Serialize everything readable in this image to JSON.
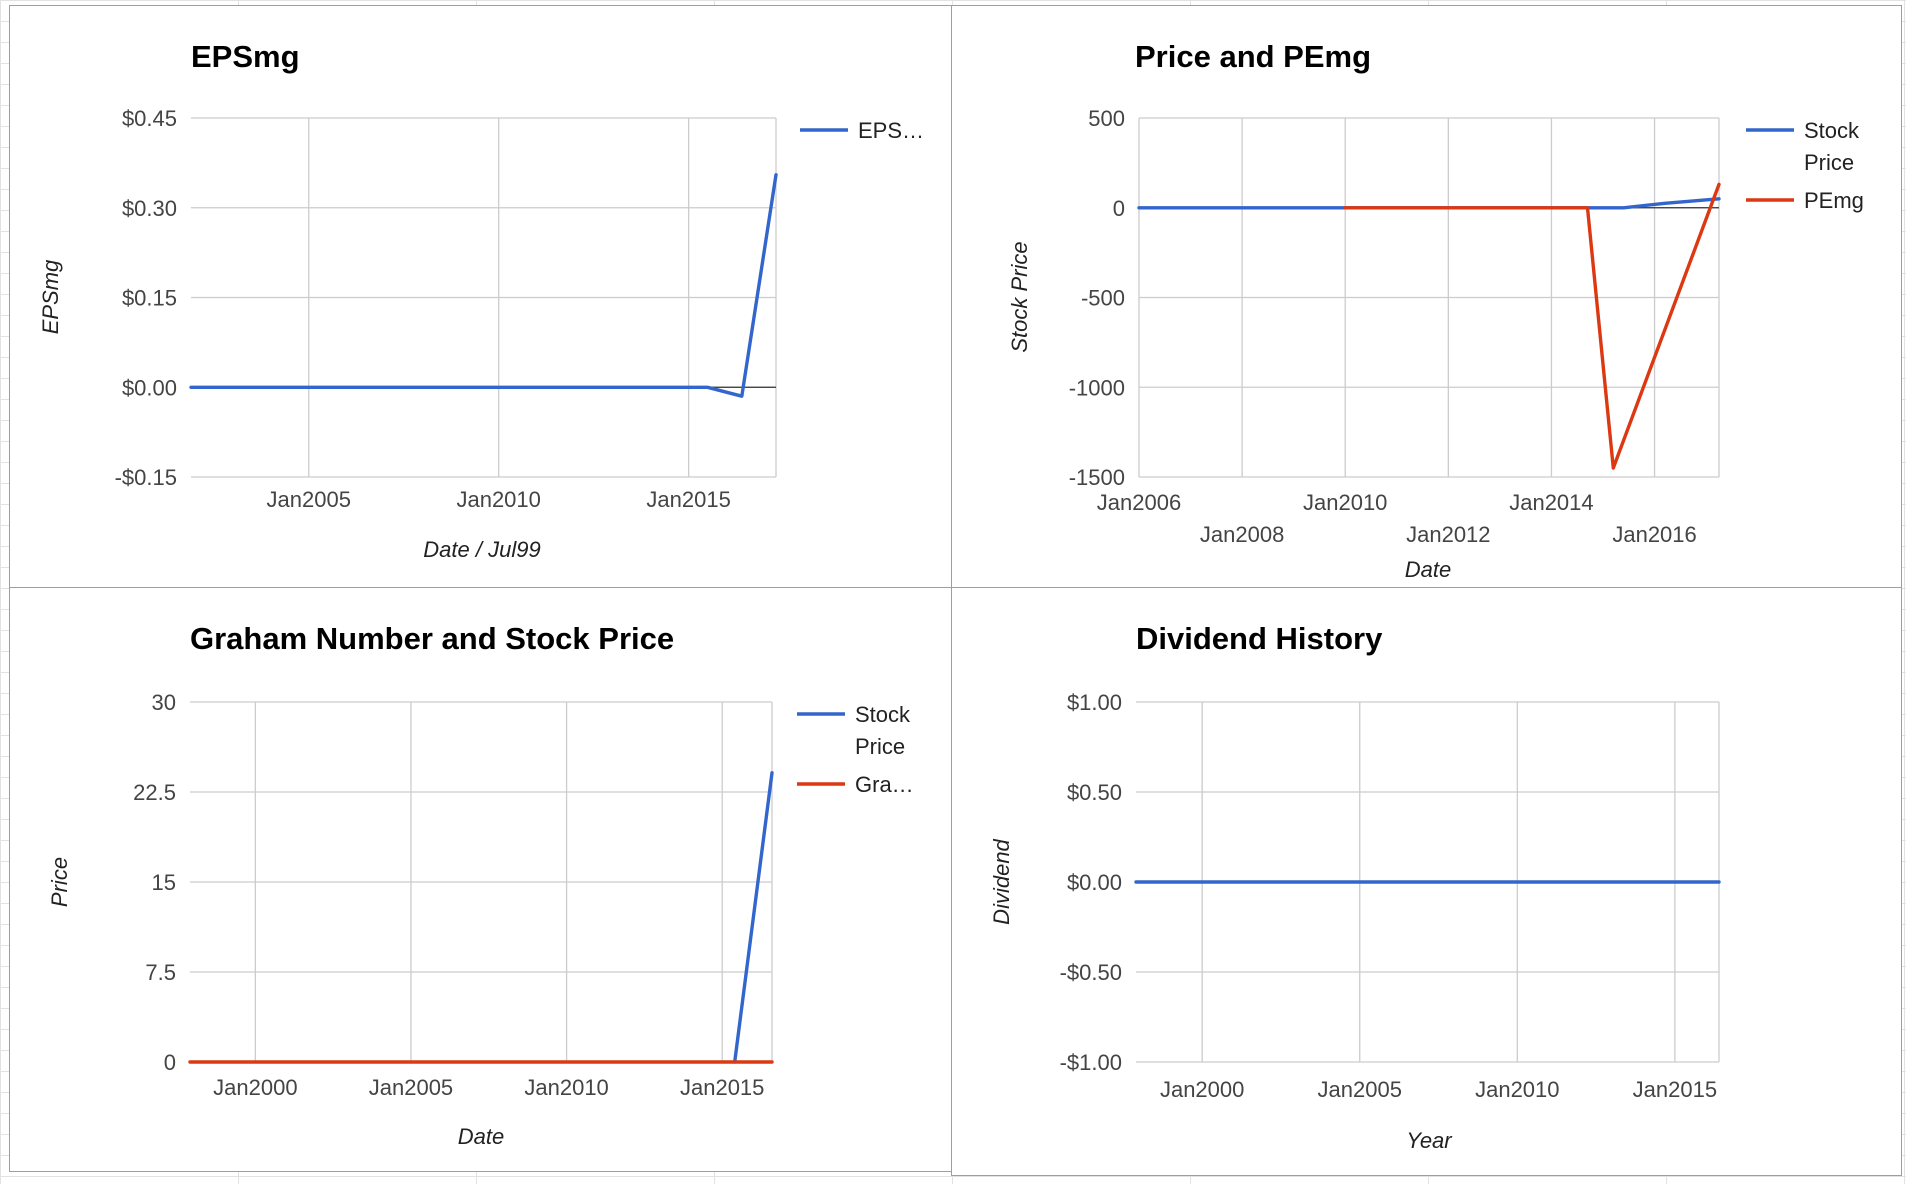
{
  "chart_data": [
    {
      "id": "eps",
      "type": "line",
      "title": "EPSmg",
      "xlabel": "Date / Jul99",
      "ylabel": "EPSmg",
      "x_ticks": [
        {
          "label": "Jan2005",
          "x": 2005.0
        },
        {
          "label": "Jan2010",
          "x": 2010.0
        },
        {
          "label": "Jan2015",
          "x": 2015.0
        }
      ],
      "y_ticks": [
        {
          "label": "$0.45",
          "y": 0.45
        },
        {
          "label": "$0.30",
          "y": 0.3
        },
        {
          "label": "$0.15",
          "y": 0.15
        },
        {
          "label": "$0.00",
          "y": 0.0
        },
        {
          "label": "-$0.15",
          "y": -0.15
        }
      ],
      "xlim": [
        2001.9,
        2017.3
      ],
      "ylim": [
        -0.15,
        0.45
      ],
      "zero_line": 0,
      "grid": true,
      "legend_position": "right",
      "series": [
        {
          "name": "EPS…",
          "color": "#3366cc",
          "x": [
            2001.9,
            2015.5,
            2016.4,
            2017.3
          ],
          "y": [
            0.0,
            0.0,
            -0.015,
            0.355
          ]
        }
      ]
    },
    {
      "id": "price-pe",
      "type": "line",
      "title": "Price and PEmg",
      "xlabel": "Date",
      "ylabel": "Stock Price",
      "x_ticks": [
        {
          "label": "Jan2006",
          "x": 2006.0,
          "row": 0
        },
        {
          "label": "Jan2008",
          "x": 2008.0,
          "row": 1
        },
        {
          "label": "Jan2010",
          "x": 2010.0,
          "row": 0
        },
        {
          "label": "Jan2012",
          "x": 2012.0,
          "row": 1
        },
        {
          "label": "Jan2014",
          "x": 2014.0,
          "row": 0
        },
        {
          "label": "Jan2016",
          "x": 2016.0,
          "row": 1
        }
      ],
      "y_ticks": [
        {
          "label": "500",
          "y": 500
        },
        {
          "label": "0",
          "y": 0
        },
        {
          "label": "-500",
          "y": -500
        },
        {
          "label": "-1000",
          "y": -1000
        },
        {
          "label": "-1500",
          "y": -1500
        }
      ],
      "xlim": [
        2006.0,
        2017.25
      ],
      "ylim": [
        -1500,
        500
      ],
      "zero_line": 0,
      "grid": true,
      "legend_position": "right",
      "series": [
        {
          "name": "Stock Price",
          "color": "#3366cc",
          "x": [
            2006.0,
            2015.4,
            2016.2,
            2017.25
          ],
          "y": [
            0,
            0,
            25,
            50
          ]
        },
        {
          "name": "PEmg",
          "color": "#dc3912",
          "x": [
            2010.0,
            2014.7,
            2015.2,
            2017.25
          ],
          "y": [
            0,
            0,
            -1450,
            130
          ]
        }
      ]
    },
    {
      "id": "graham",
      "type": "line",
      "title": "Graham Number and Stock Price",
      "xlabel": "Date",
      "ylabel": "Price",
      "x_ticks": [
        {
          "label": "Jan2000",
          "x": 2000.0
        },
        {
          "label": "Jan2005",
          "x": 2005.0
        },
        {
          "label": "Jan2010",
          "x": 2010.0
        },
        {
          "label": "Jan2015",
          "x": 2015.0
        }
      ],
      "y_ticks": [
        {
          "label": "30",
          "y": 30
        },
        {
          "label": "22.5",
          "y": 22.5
        },
        {
          "label": "15",
          "y": 15
        },
        {
          "label": "7.5",
          "y": 7.5
        },
        {
          "label": "0",
          "y": 0
        }
      ],
      "xlim": [
        1997.9,
        2016.6
      ],
      "ylim": [
        0,
        30
      ],
      "grid": true,
      "legend_position": "right",
      "series": [
        {
          "name": "Stock Price",
          "color": "#3366cc",
          "x": [
            2015.4,
            2016.6
          ],
          "y": [
            0,
            24.1
          ]
        },
        {
          "name": "Gra…",
          "color": "#dc3912",
          "x": [
            1997.9,
            2016.6
          ],
          "y": [
            0,
            0
          ]
        }
      ]
    },
    {
      "id": "dividend",
      "type": "line",
      "title": "Dividend History",
      "xlabel": "Year",
      "ylabel": "Dividend",
      "x_ticks": [
        {
          "label": "Jan2000",
          "x": 2000.0
        },
        {
          "label": "Jan2005",
          "x": 2005.0
        },
        {
          "label": "Jan2010",
          "x": 2010.0
        },
        {
          "label": "Jan2015",
          "x": 2015.0
        }
      ],
      "y_ticks": [
        {
          "label": "$1.00",
          "y": 1.0
        },
        {
          "label": "$0.50",
          "y": 0.5
        },
        {
          "label": "$0.00",
          "y": 0.0
        },
        {
          "label": "-$0.50",
          "y": -0.5
        },
        {
          "label": "-$1.00",
          "y": -1.0
        }
      ],
      "xlim": [
        1997.9,
        2016.4
      ],
      "ylim": [
        -1.0,
        1.0
      ],
      "grid": true,
      "series": [
        {
          "color": "#3366cc",
          "x": [
            1997.9,
            2016.4
          ],
          "y": [
            0,
            0
          ]
        }
      ]
    }
  ]
}
